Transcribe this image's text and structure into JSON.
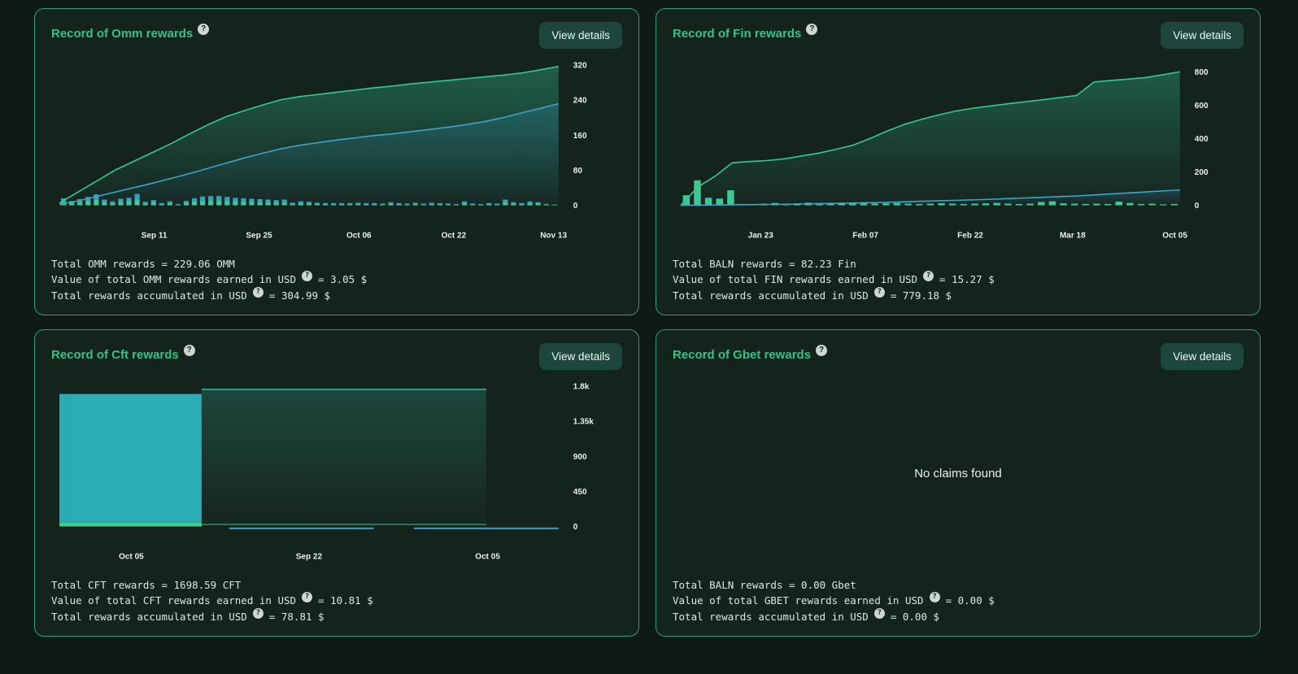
{
  "icons": {
    "question": "?"
  },
  "page": {
    "background": "#0d1a15",
    "card_background": "#15231d",
    "card_border": "#2f9e76",
    "accent_green": "#35c287",
    "button_background": "#1d473c"
  },
  "cards": [
    {
      "title": "Record of Omm rewards",
      "button_label": "View details",
      "summary": [
        {
          "pre": "Total OMM rewards = 229.06 OMM",
          "post": ""
        },
        {
          "pre": "Value of total OMM rewards earned in USD",
          "post": "= 3.05 $"
        },
        {
          "pre": "Total rewards accumulated in USD",
          "post": "= 304.99 $"
        }
      ]
    },
    {
      "title": "Record of Fin rewards",
      "button_label": "View details",
      "summary": [
        {
          "pre": "Total BALN rewards = 82.23 Fin",
          "post": ""
        },
        {
          "pre": "Value of total FIN rewards earned in USD",
          "post": "= 15.27 $"
        },
        {
          "pre": "Total rewards accumulated in USD",
          "post": "= 779.18 $"
        }
      ]
    },
    {
      "title": "Record of Cft rewards",
      "button_label": "View details",
      "summary": [
        {
          "pre": "Total CFT rewards = 1698.59 CFT",
          "post": ""
        },
        {
          "pre": "Value of total CFT rewards earned in USD",
          "post": "= 10.81 $"
        },
        {
          "pre": "Total rewards accumulated in USD",
          "post": "= 78.81 $"
        }
      ]
    },
    {
      "title": "Record of Gbet rewards",
      "button_label": "View details",
      "empty_text": "No claims found",
      "summary": [
        {
          "pre": "Total BALN rewards = 0.00 Gbet",
          "post": ""
        },
        {
          "pre": "Value of total GBET rewards earned in USD",
          "post": "= 0.00 $"
        },
        {
          "pre": "Total rewards accumulated in USD",
          "post": "= 0.00 $"
        }
      ]
    }
  ],
  "chart_data": [
    {
      "type": "composed",
      "title": "Omm rewards over time",
      "ymax": 320,
      "yticks": [
        {
          "v": 0,
          "label": "0"
        },
        {
          "v": 80,
          "label": "80"
        },
        {
          "v": 160,
          "label": "160"
        },
        {
          "v": 240,
          "label": "240"
        },
        {
          "v": 320,
          "label": "320"
        }
      ],
      "xticks": [
        {
          "f": 0.19,
          "label": "Sep 11"
        },
        {
          "f": 0.4,
          "label": "Sep 25"
        },
        {
          "f": 0.6,
          "label": "Oct 06"
        },
        {
          "f": 0.79,
          "label": "Oct 22"
        },
        {
          "f": 0.99,
          "label": "Nov 13"
        }
      ],
      "lines": [
        {
          "name": "accumulated-usd",
          "color": "#38c993",
          "fill": "#2faf85",
          "fillOpacity": 0.42,
          "values": [
            5,
            30,
            55,
            80,
            100,
            120,
            140,
            162,
            183,
            202,
            216,
            229,
            241,
            248,
            253,
            258,
            263,
            268,
            272,
            277,
            281,
            285,
            289,
            293,
            297,
            302,
            309,
            317
          ]
        },
        {
          "name": "omm-amount",
          "color": "#3ea4c8",
          "fill": "#2f8fb5",
          "fillOpacity": 0.3,
          "values": [
            2,
            10,
            20,
            30,
            40,
            50,
            61,
            72,
            84,
            96,
            108,
            119,
            129,
            137,
            143,
            149,
            154,
            159,
            163,
            168,
            173,
            178,
            184,
            191,
            200,
            211,
            221,
            232
          ]
        }
      ],
      "bars": {
        "name": "claims",
        "colorBottom": "#3fc795",
        "colorTop": "#3a9fc4",
        "split": 0.55,
        "values": [
          16,
          10,
          14,
          19,
          25,
          13,
          9,
          15,
          17,
          26,
          8,
          12,
          5,
          9,
          3,
          10,
          16,
          20,
          21,
          21,
          19,
          17,
          16,
          15,
          14,
          13,
          12,
          13,
          6,
          9,
          8,
          6,
          5,
          5,
          5,
          5,
          6,
          5,
          5,
          4,
          7,
          5,
          4,
          6,
          4,
          6,
          5,
          4,
          3,
          9,
          4,
          3,
          5,
          4,
          13,
          7,
          5,
          9,
          7,
          3,
          2
        ]
      }
    },
    {
      "type": "composed",
      "title": "Fin rewards over time",
      "ymax": 840,
      "yticks": [
        {
          "v": 0,
          "label": "0"
        },
        {
          "v": 200,
          "label": "200"
        },
        {
          "v": 400,
          "label": "400"
        },
        {
          "v": 600,
          "label": "600"
        },
        {
          "v": 800,
          "label": "800"
        }
      ],
      "xticks": [
        {
          "f": 0.16,
          "label": "Jan 23"
        },
        {
          "f": 0.37,
          "label": "Feb 07"
        },
        {
          "f": 0.58,
          "label": "Feb 22"
        },
        {
          "f": 0.785,
          "label": "Mar 18"
        },
        {
          "f": 0.99,
          "label": "Oct 05"
        }
      ],
      "lines": [
        {
          "name": "accumulated-usd",
          "color": "#38c993",
          "fill": "#2faf85",
          "fillOpacity": 0.4,
          "values": [
            0,
            110,
            175,
            255,
            262,
            268,
            278,
            295,
            312,
            335,
            360,
            400,
            445,
            485,
            515,
            542,
            565,
            582,
            595,
            608,
            620,
            632,
            645,
            658,
            738,
            748,
            756,
            765,
            782,
            800
          ]
        },
        {
          "name": "fin-amount",
          "color": "#3ea4c8",
          "fill": "#2f8fb5",
          "fillOpacity": 0.25,
          "values": [
            0,
            1,
            2,
            3,
            4,
            5,
            6,
            8,
            10,
            12,
            14,
            16,
            18,
            21,
            24,
            27,
            30,
            33,
            36,
            40,
            44,
            48,
            52,
            56,
            62,
            68,
            74,
            80,
            86,
            92
          ]
        }
      ],
      "bars": {
        "name": "claims",
        "colorBottom": "#3fc795",
        "colorTop": "#3fc795",
        "split": 1,
        "values": [
          60,
          150,
          45,
          40,
          90,
          8,
          6,
          10,
          14,
          8,
          12,
          16,
          12,
          14,
          16,
          15,
          13,
          11,
          12,
          14,
          10,
          8,
          10,
          12,
          10,
          8,
          10,
          12,
          14,
          10,
          8,
          10,
          20,
          24,
          12,
          10,
          8,
          10,
          8,
          22,
          14,
          8,
          10,
          6,
          8
        ]
      }
    },
    {
      "type": "composed",
      "title": "Cft rewards over time",
      "ymax": 1800,
      "yticks": [
        {
          "v": 0,
          "label": "0"
        },
        {
          "v": 450,
          "label": "450"
        },
        {
          "v": 900,
          "label": "900"
        },
        {
          "v": 1350,
          "label": "1.35k"
        },
        {
          "v": 1800,
          "label": "1.8k"
        }
      ],
      "xticks": [
        {
          "f": 0.144,
          "label": "Oct 05"
        },
        {
          "f": 0.5,
          "label": "Sep 22"
        },
        {
          "f": 0.858,
          "label": "Oct 05"
        }
      ],
      "rects": [
        {
          "f0": 0.0,
          "f1": 0.285,
          "v0": 50,
          "v1": 1700,
          "color": "#2aacb2"
        },
        {
          "f0": 0.0,
          "f1": 0.285,
          "v0": 0,
          "v1": 50,
          "color": "#3ecf92"
        },
        {
          "f0": 0.285,
          "f1": 0.855,
          "v0": 30,
          "v1": 1760,
          "color": "#2f9e82",
          "gradient": true,
          "topLine": "#35b9a6"
        },
        {
          "f0": 0.285,
          "f1": 0.855,
          "v0": 18,
          "v1": 34,
          "color": "#2f9b79",
          "opacity": 0.9
        },
        {
          "f0": 0.34,
          "f1": 0.63,
          "v0": -34,
          "v1": -14,
          "color": "#2fa8c9"
        },
        {
          "f0": 0.71,
          "f1": 1.0,
          "v0": -34,
          "v1": -14,
          "color": "#2fa8c9"
        }
      ]
    },
    null
  ]
}
